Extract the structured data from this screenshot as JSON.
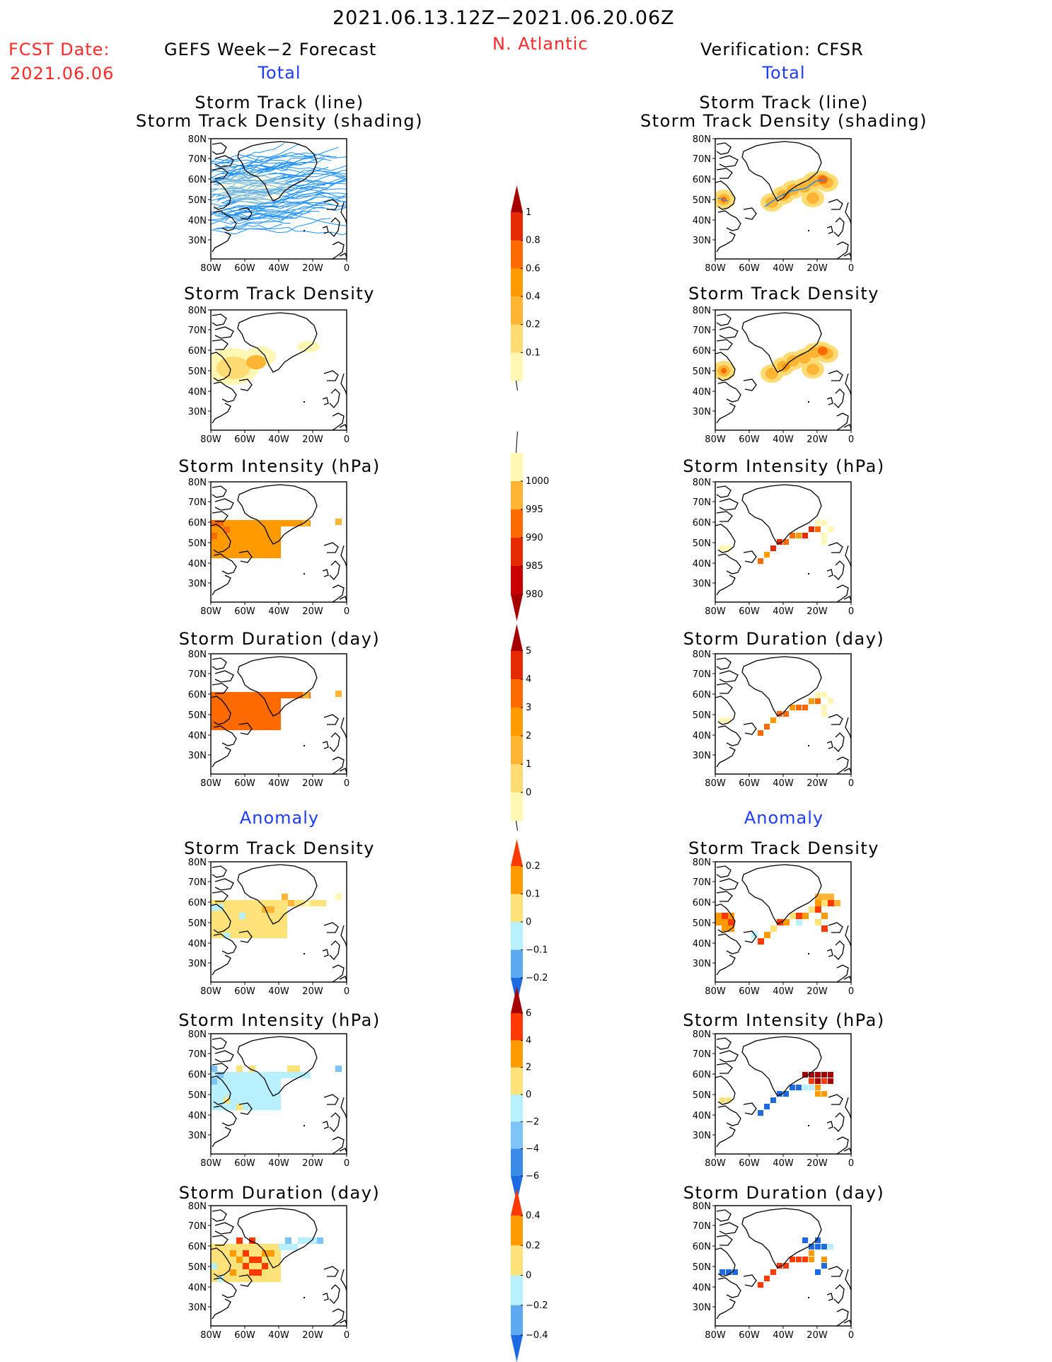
{
  "header": {
    "date_range": "2021.06.13.12Z−2021.06.20.06Z",
    "fcst_label": "FCST Date:",
    "fcst_date": "2021.06.06",
    "forecast_title": "GEFS Week−2 Forecast",
    "region": "N. Atlantic",
    "verification_title": "Verification: CFSR"
  },
  "sections": {
    "total": "Total",
    "anomaly": "Anomaly"
  },
  "panel_titles": {
    "track_line": "Storm Track (line)",
    "track_shading": "Storm Track Density (shading)",
    "density": "Storm Track Density",
    "intensity": "Storm Intensity (hPa)",
    "duration": "Storm Duration (day)"
  },
  "map_axes": {
    "lat_ticks": [
      "80N",
      "70N",
      "60N",
      "50N",
      "40N",
      "30N"
    ],
    "lon_ticks": [
      "80W",
      "60W",
      "40W",
      "20W",
      "0"
    ]
  },
  "colors": {
    "red_text": "#ff2a2a",
    "blue_text": "#1f3cff",
    "track_line": "#1e90ff",
    "coast": "#000000"
  },
  "chart_data": [
    {
      "type": "heatmap",
      "name": "total-track-density-colorbar",
      "levels": [
        "0.1",
        "0.2",
        "0.4",
        "0.6",
        "0.8",
        "1"
      ],
      "colors": [
        "#fff7b3",
        "#ffdc73",
        "#ffb533",
        "#ff9a00",
        "#ff6a00",
        "#e52a00",
        "#a50000"
      ]
    },
    {
      "type": "heatmap",
      "name": "total-intensity-colorbar",
      "levels": [
        "1000",
        "995",
        "990",
        "985",
        "980"
      ],
      "colors": [
        "#fff7b3",
        "#ffb533",
        "#ff6a00",
        "#e52a00",
        "#c80000",
        "#a50000"
      ]
    },
    {
      "type": "heatmap",
      "name": "total-duration-colorbar",
      "levels": [
        "0",
        "1",
        "2",
        "3",
        "4",
        "5"
      ],
      "colors": [
        "#fff7b3",
        "#ffdc73",
        "#ffb533",
        "#ff9a00",
        "#ff6a00",
        "#e52a00",
        "#a50000"
      ]
    },
    {
      "type": "heatmap",
      "name": "anomaly-density-colorbar",
      "levels": [
        "0.2",
        "0.1",
        "0",
        "−0.1",
        "−0.2"
      ],
      "colors": [
        "#ff3a00",
        "#ff9a00",
        "#ffe27a",
        "#b8f0ff",
        "#5eaaf0",
        "#1e6ae0"
      ]
    },
    {
      "type": "heatmap",
      "name": "anomaly-intensity-colorbar",
      "levels": [
        "6",
        "4",
        "2",
        "0",
        "−2",
        "−4",
        "−6"
      ],
      "colors": [
        "#a50000",
        "#ff3a00",
        "#ff9a00",
        "#ffe27a",
        "#b8f0ff",
        "#7ec4f8",
        "#3a8ae8",
        "#1e6ae0"
      ]
    },
    {
      "type": "heatmap",
      "name": "anomaly-duration-colorbar",
      "levels": [
        "0.4",
        "0.2",
        "0",
        "−0.2",
        "−0.4"
      ],
      "colors": [
        "#ff3a00",
        "#ff9a00",
        "#ffe27a",
        "#b8f0ff",
        "#5eaaf0",
        "#1e6ae0"
      ]
    }
  ]
}
